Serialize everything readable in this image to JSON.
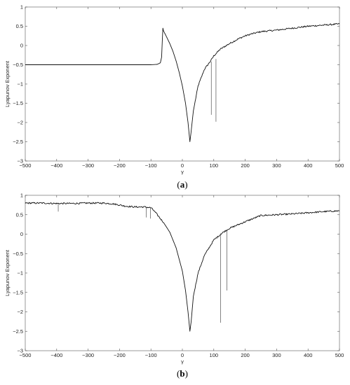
{
  "chart_data": [
    {
      "type": "line",
      "panel_label": "(a)",
      "xlabel": "γ",
      "ylabel": "Lyapunov Exponent",
      "xlim": [
        -500,
        500
      ],
      "ylim": [
        -3,
        1
      ],
      "xticks": [
        -500,
        -400,
        -300,
        -200,
        -100,
        0,
        100,
        200,
        300,
        400,
        500
      ],
      "yticks": [
        -3,
        -2.5,
        -2,
        -1.5,
        -1,
        -0.5,
        0,
        0.5,
        1
      ],
      "grid": false,
      "series": [
        {
          "x": [
            -500,
            -400,
            -300,
            -200,
            -150,
            -100,
            -80,
            -70,
            -66,
            -64,
            -62,
            -60,
            -55,
            -50,
            -40,
            -30,
            -20,
            -10,
            0,
            10,
            18,
            24,
            27,
            35,
            50,
            70,
            90,
            100,
            120,
            150,
            180,
            200,
            220,
            250,
            300,
            350,
            400,
            450,
            500
          ],
          "y": [
            -0.5,
            -0.5,
            -0.5,
            -0.5,
            -0.5,
            -0.5,
            -0.49,
            -0.45,
            -0.3,
            0.1,
            0.45,
            0.38,
            0.3,
            0.22,
            0.05,
            -0.15,
            -0.4,
            -0.7,
            -1.05,
            -1.5,
            -2.0,
            -2.5,
            -2.3,
            -1.7,
            -1.05,
            -0.62,
            -0.4,
            -0.27,
            -0.1,
            0.05,
            0.18,
            0.25,
            0.3,
            0.36,
            0.4,
            0.45,
            0.5,
            0.53,
            0.56
          ]
        }
      ],
      "spikes": [
        {
          "x": 92,
          "y_top": -0.42,
          "y_bottom": -1.8
        },
        {
          "x": 107,
          "y_top": -0.35,
          "y_bottom": -1.98
        }
      ]
    },
    {
      "type": "line",
      "panel_label": "(b)",
      "xlabel": "γ",
      "ylabel": "Lyapunov Exponent",
      "xlim": [
        -500,
        500
      ],
      "ylim": [
        -3,
        1
      ],
      "xticks": [
        -500,
        -400,
        -300,
        -200,
        -100,
        0,
        100,
        200,
        300,
        400,
        500
      ],
      "yticks": [
        -3,
        -2.5,
        -2,
        -1.5,
        -1,
        -0.5,
        0,
        0.5,
        1
      ],
      "grid": false,
      "series": [
        {
          "x": [
            -500,
            -450,
            -400,
            -350,
            -300,
            -250,
            -220,
            -200,
            -180,
            -150,
            -120,
            -100,
            -90,
            -80,
            -60,
            -40,
            -20,
            0,
            10,
            18,
            24,
            28,
            35,
            50,
            70,
            100,
            130,
            150,
            200,
            250,
            300,
            350,
            400,
            450,
            500
          ],
          "y": [
            0.8,
            0.8,
            0.79,
            0.79,
            0.8,
            0.8,
            0.78,
            0.75,
            0.72,
            0.7,
            0.7,
            0.68,
            0.6,
            0.5,
            0.3,
            0.05,
            -0.35,
            -0.95,
            -1.45,
            -2.0,
            -2.5,
            -2.25,
            -1.6,
            -1.0,
            -0.55,
            -0.15,
            0.05,
            0.15,
            0.32,
            0.48,
            0.5,
            0.52,
            0.55,
            0.58,
            0.6
          ]
        }
      ],
      "spikes": [
        {
          "x": -395,
          "y_top": 0.79,
          "y_bottom": 0.58
        },
        {
          "x": -115,
          "y_top": 0.7,
          "y_bottom": 0.43
        },
        {
          "x": -102,
          "y_top": 0.68,
          "y_bottom": 0.4
        },
        {
          "x": 122,
          "y_top": 0.02,
          "y_bottom": -2.28
        },
        {
          "x": 142,
          "y_top": 0.1,
          "y_bottom": -1.45
        }
      ]
    }
  ]
}
